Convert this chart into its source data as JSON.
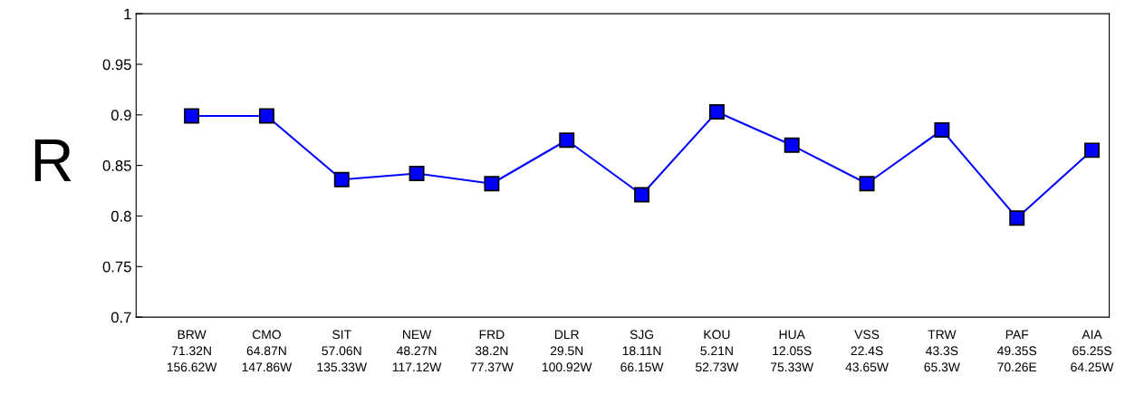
{
  "chart_data": {
    "type": "line",
    "ylabel": "R",
    "categories": [
      "BRW\n71.32N\n156.62W",
      "CMO\n64.87N\n147.86W",
      "SIT\n57.06N\n135.33W",
      "NEW\n48.27N\n117.12W",
      "FRD\n38.2N\n77.37W",
      "DLR\n29.5N\n100.92W",
      "SJG\n18.11N\n66.15W",
      "KOU\n5.21N\n52.73W",
      "HUA\n12.05S\n75.33W",
      "VSS\n22.4S\n43.65W",
      "TRW\n43.3S\n65.3W",
      "PAF\n49.35S\n70.26E",
      "AIA\n65.25S\n64.25W"
    ],
    "series": [
      {
        "color": "#0000ff",
        "values": [
          0.899,
          0.899,
          0.836,
          0.842,
          0.832,
          0.875,
          0.821,
          0.903,
          0.87,
          0.832,
          0.885,
          0.798,
          0.865
        ]
      }
    ],
    "ylim": [
      0.7,
      1
    ],
    "yticks": [
      0.7,
      0.75,
      0.8,
      0.85,
      0.9,
      0.95,
      1
    ],
    "marker": "square",
    "line_style": "solid",
    "grid": false,
    "legend": false
  }
}
